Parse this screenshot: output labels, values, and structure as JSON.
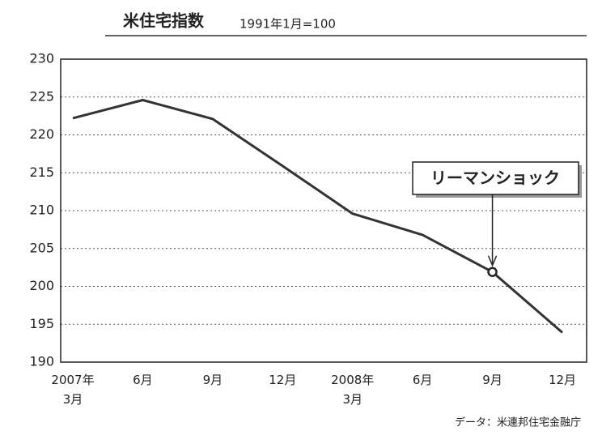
{
  "chart_data": {
    "type": "line",
    "title": "米住宅指数",
    "subtitle": "1991年1月=100",
    "source": "データ：米連邦住宅金融庁",
    "annotation": "リーマンショック",
    "categories": [
      "2007年\n3月",
      "6月",
      "9月",
      "12月",
      "2008年\n3月",
      "6月",
      "9月",
      "12月"
    ],
    "series": [
      {
        "name": "米住宅指数",
        "color": "#333333",
        "values": [
          222.2,
          224.6,
          222.1,
          215.9,
          209.6,
          206.8,
          201.9,
          193.9
        ]
      }
    ],
    "ylim": [
      190,
      230
    ],
    "yticks": [
      190,
      195,
      200,
      205,
      210,
      215,
      220,
      225,
      230
    ],
    "grid": true
  }
}
